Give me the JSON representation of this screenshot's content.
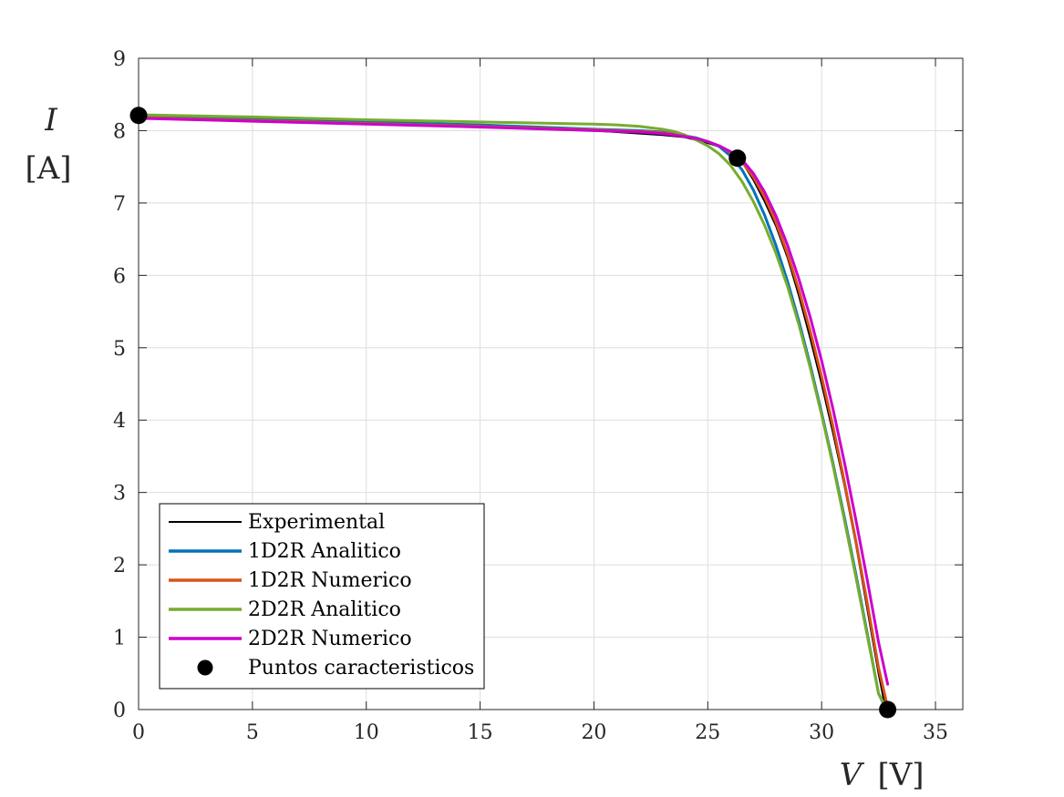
{
  "chart_data": {
    "type": "line",
    "title": "",
    "xlabel_var": "V",
    "xlabel_unit": "[V]",
    "ylabel_var": "I",
    "ylabel_unit": "[A]",
    "xlim": [
      0,
      36.2
    ],
    "ylim": [
      0,
      9
    ],
    "xticks": [
      0,
      5,
      10,
      15,
      20,
      25,
      30,
      35
    ],
    "yticks": [
      0,
      1,
      2,
      3,
      4,
      5,
      6,
      7,
      8,
      9
    ],
    "grid": true,
    "legend_position": "bottom-left",
    "series": [
      {
        "name": "Experimental",
        "color": "#000000",
        "x": [
          0,
          5,
          10,
          15,
          19,
          20,
          21,
          22,
          23,
          24,
          25,
          25.5,
          26,
          26.5,
          27,
          27.5,
          28,
          28.5,
          29,
          29.5,
          30,
          30.5,
          31,
          31.5,
          32,
          32.5,
          32.8
        ],
        "y": [
          8.2,
          8.14,
          8.09,
          8.05,
          8.01,
          8.0,
          7.98,
          7.96,
          7.94,
          7.91,
          7.83,
          7.78,
          7.71,
          7.57,
          7.32,
          7.02,
          6.68,
          6.25,
          5.72,
          5.13,
          4.5,
          3.82,
          3.1,
          2.3,
          1.4,
          0.5,
          0.02
        ]
      },
      {
        "name": "1D2R Analitico",
        "color": "#0072BD",
        "x": [
          0,
          5,
          10,
          15,
          20,
          22,
          23,
          24,
          24.5,
          25,
          25.5,
          26,
          26.5,
          27,
          27.5,
          28,
          28.5,
          29,
          29.5,
          30,
          30.5,
          31,
          31.5,
          32,
          32.5,
          32.85
        ],
        "y": [
          8.2,
          8.16,
          8.12,
          8.08,
          8.02,
          8.0,
          7.98,
          7.93,
          7.9,
          7.85,
          7.78,
          7.65,
          7.46,
          7.18,
          6.83,
          6.41,
          5.92,
          5.37,
          4.76,
          4.1,
          3.4,
          2.66,
          1.88,
          1.06,
          0.22,
          0.0
        ]
      },
      {
        "name": "1D2R Numerico",
        "color": "#D95319",
        "x": [
          0,
          5,
          10,
          15,
          20,
          22,
          23,
          24,
          24.5,
          25,
          25.5,
          26,
          26.5,
          27,
          27.5,
          28,
          28.5,
          29,
          29.5,
          30,
          30.5,
          31,
          31.5,
          32,
          32.5,
          32.85
        ],
        "y": [
          8.18,
          8.14,
          8.1,
          8.06,
          8.01,
          7.99,
          7.97,
          7.93,
          7.89,
          7.85,
          7.79,
          7.7,
          7.57,
          7.36,
          7.08,
          6.73,
          6.3,
          5.8,
          5.23,
          4.6,
          3.91,
          3.15,
          2.34,
          1.48,
          0.58,
          0.1
        ]
      },
      {
        "name": "2D2R Analitico",
        "color": "#77AC30",
        "x": [
          0,
          5,
          10,
          15,
          20,
          21,
          22,
          23,
          23.5,
          24,
          24.5,
          25,
          25.5,
          26,
          26.5,
          27,
          27.5,
          28,
          28.5,
          29,
          29.5,
          30,
          30.5,
          31,
          31.5,
          32,
          32.5,
          32.8
        ],
        "y": [
          8.22,
          8.19,
          8.15,
          8.12,
          8.09,
          8.08,
          8.06,
          8.02,
          7.99,
          7.94,
          7.87,
          7.79,
          7.68,
          7.52,
          7.3,
          7.02,
          6.69,
          6.3,
          5.85,
          5.32,
          4.72,
          4.07,
          3.37,
          2.62,
          1.84,
          1.03,
          0.22,
          0.05
        ]
      },
      {
        "name": "2D2R Numerico",
        "color": "#CC00CC",
        "x": [
          0,
          5,
          10,
          15,
          20,
          22,
          23,
          24,
          24.5,
          25,
          25.5,
          26,
          26.5,
          27,
          27.5,
          28,
          28.5,
          29,
          29.5,
          30,
          30.5,
          31,
          31.5,
          32,
          32.5,
          32.9
        ],
        "y": [
          8.17,
          8.13,
          8.09,
          8.05,
          8.0,
          7.98,
          7.96,
          7.92,
          7.89,
          7.85,
          7.79,
          7.71,
          7.6,
          7.41,
          7.15,
          6.82,
          6.42,
          5.95,
          5.42,
          4.82,
          4.15,
          3.42,
          2.63,
          1.8,
          0.93,
          0.35
        ]
      },
      {
        "name": "Puntos caracteristicos",
        "color": "#000000",
        "marker": "dot",
        "x": [
          0,
          26.3,
          32.9
        ],
        "y": [
          8.21,
          7.62,
          0.0
        ]
      }
    ]
  }
}
